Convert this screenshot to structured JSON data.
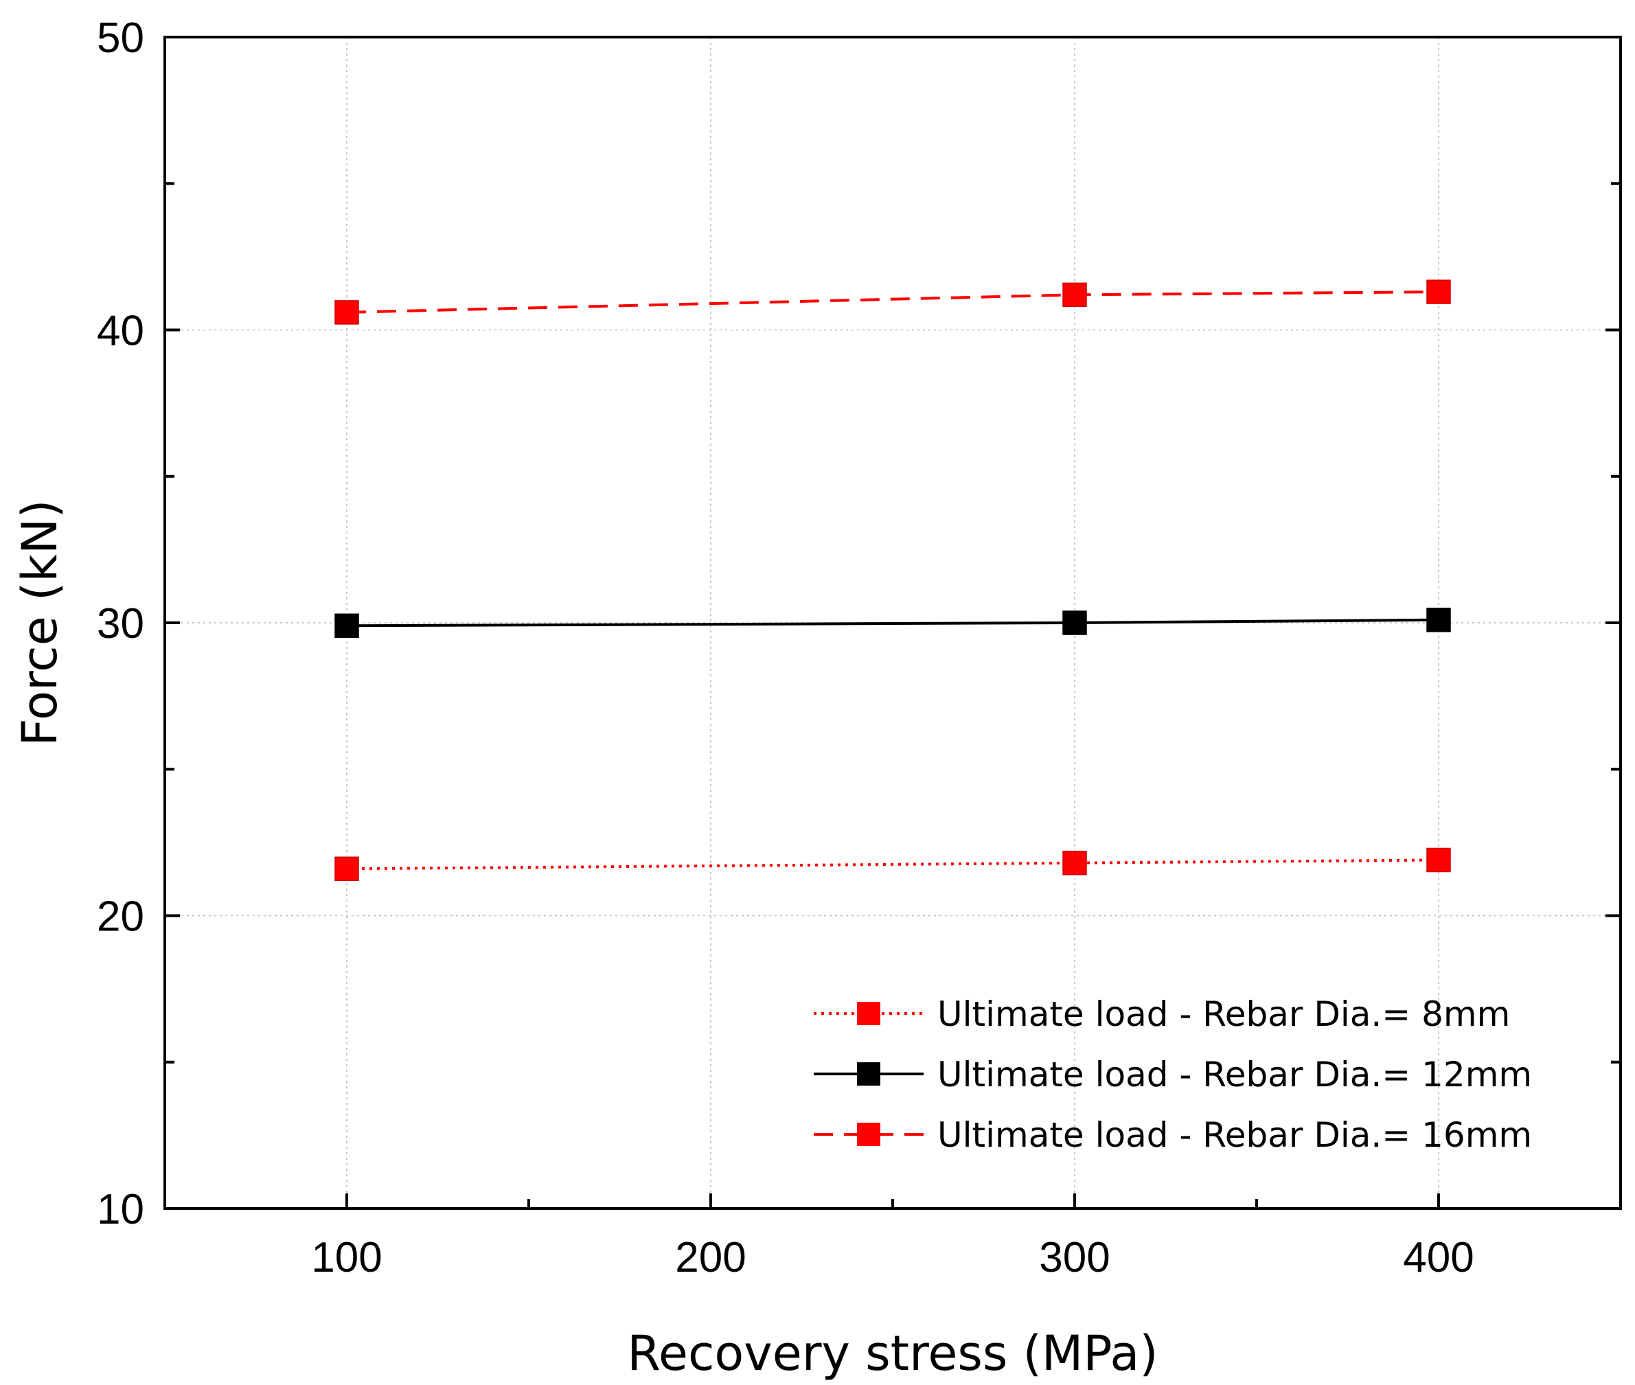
{
  "chart_data": {
    "type": "line",
    "title": "",
    "xlabel": "Recovery stress (MPa)",
    "ylabel": "Force (kN)",
    "xlim": [
      50,
      450
    ],
    "ylim": [
      10,
      50
    ],
    "xticks": [
      100,
      200,
      300,
      400
    ],
    "xminor": [
      150,
      250,
      350
    ],
    "yticks": [
      10,
      20,
      30,
      40,
      50
    ],
    "yminor": [
      15,
      25,
      35,
      45
    ],
    "grid": true,
    "legend_position": "bottom-right",
    "series": [
      {
        "name": "Ultimate load - Rebar Dia.= 8mm",
        "x": [
          100,
          300,
          400
        ],
        "y": [
          21.6,
          21.8,
          21.9
        ],
        "color": "#ff0000",
        "line_style": "dotted",
        "marker": "square"
      },
      {
        "name": "Ultimate load - Rebar Dia.= 12mm",
        "x": [
          100,
          300,
          400
        ],
        "y": [
          29.9,
          30.0,
          30.1
        ],
        "color": "#000000",
        "line_style": "solid",
        "marker": "square"
      },
      {
        "name": "Ultimate load - Rebar Dia.= 16mm",
        "x": [
          100,
          300,
          400
        ],
        "y": [
          40.6,
          41.2,
          41.3
        ],
        "color": "#ff0000",
        "line_style": "dashed",
        "marker": "square"
      }
    ]
  }
}
